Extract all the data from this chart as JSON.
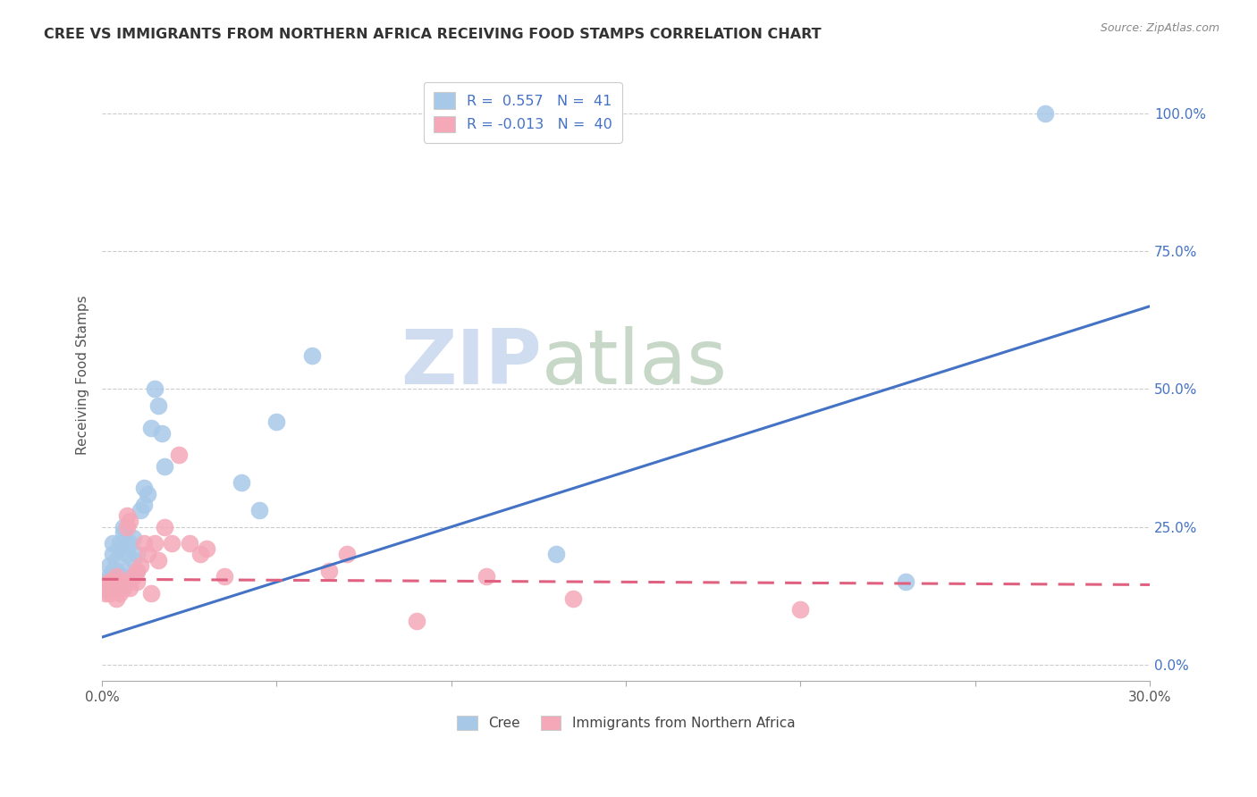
{
  "title": "CREE VS IMMIGRANTS FROM NORTHERN AFRICA RECEIVING FOOD STAMPS CORRELATION CHART",
  "source": "Source: ZipAtlas.com",
  "ylabel": "Receiving Food Stamps",
  "xmin": 0.0,
  "xmax": 0.3,
  "ymin": -0.03,
  "ymax": 1.08,
  "yticks": [
    0.0,
    0.25,
    0.5,
    0.75,
    1.0
  ],
  "ytick_labels": [
    "0.0%",
    "25.0%",
    "50.0%",
    "75.0%",
    "100.0%"
  ],
  "xticks": [
    0.0,
    0.05,
    0.1,
    0.15,
    0.2,
    0.25,
    0.3
  ],
  "xtick_labels": [
    "0.0%",
    "",
    "",
    "",
    "",
    "",
    "30.0%"
  ],
  "blue_R": 0.557,
  "blue_N": 41,
  "pink_R": -0.013,
  "pink_N": 40,
  "blue_color": "#A8C8E8",
  "pink_color": "#F4A8B8",
  "blue_line_color": "#4472C4",
  "pink_line_color": "#E06080",
  "legend_label_blue": "Cree",
  "legend_label_pink": "Immigrants from Northern Africa",
  "watermark_zip": "ZIP",
  "watermark_atlas": "atlas",
  "blue_line_x0": 0.0,
  "blue_line_y0": 0.05,
  "blue_line_x1": 0.3,
  "blue_line_y1": 0.65,
  "pink_line_x0": 0.0,
  "pink_line_y0": 0.155,
  "pink_line_x1": 0.3,
  "pink_line_y1": 0.145,
  "blue_scatter_x": [
    0.001,
    0.001,
    0.002,
    0.002,
    0.003,
    0.003,
    0.003,
    0.003,
    0.004,
    0.004,
    0.004,
    0.005,
    0.005,
    0.005,
    0.006,
    0.006,
    0.006,
    0.007,
    0.007,
    0.008,
    0.008,
    0.009,
    0.009,
    0.01,
    0.01,
    0.011,
    0.012,
    0.012,
    0.013,
    0.014,
    0.015,
    0.016,
    0.017,
    0.018,
    0.04,
    0.045,
    0.05,
    0.06,
    0.13,
    0.23,
    0.27
  ],
  "blue_scatter_y": [
    0.14,
    0.15,
    0.16,
    0.18,
    0.14,
    0.17,
    0.2,
    0.22,
    0.15,
    0.17,
    0.19,
    0.14,
    0.21,
    0.22,
    0.24,
    0.25,
    0.16,
    0.17,
    0.2,
    0.15,
    0.22,
    0.19,
    0.23,
    0.17,
    0.2,
    0.28,
    0.29,
    0.32,
    0.31,
    0.43,
    0.5,
    0.47,
    0.42,
    0.36,
    0.33,
    0.28,
    0.44,
    0.56,
    0.2,
    0.15,
    1.0
  ],
  "pink_scatter_x": [
    0.001,
    0.001,
    0.002,
    0.002,
    0.003,
    0.003,
    0.004,
    0.004,
    0.004,
    0.005,
    0.005,
    0.005,
    0.006,
    0.006,
    0.007,
    0.007,
    0.008,
    0.008,
    0.009,
    0.01,
    0.01,
    0.011,
    0.012,
    0.013,
    0.014,
    0.015,
    0.016,
    0.018,
    0.02,
    0.022,
    0.025,
    0.028,
    0.03,
    0.035,
    0.065,
    0.07,
    0.09,
    0.11,
    0.135,
    0.2
  ],
  "pink_scatter_y": [
    0.14,
    0.13,
    0.15,
    0.13,
    0.14,
    0.15,
    0.12,
    0.14,
    0.16,
    0.13,
    0.14,
    0.15,
    0.14,
    0.15,
    0.25,
    0.27,
    0.26,
    0.14,
    0.16,
    0.15,
    0.17,
    0.18,
    0.22,
    0.2,
    0.13,
    0.22,
    0.19,
    0.25,
    0.22,
    0.38,
    0.22,
    0.2,
    0.21,
    0.16,
    0.17,
    0.2,
    0.08,
    0.16,
    0.12,
    0.1
  ]
}
